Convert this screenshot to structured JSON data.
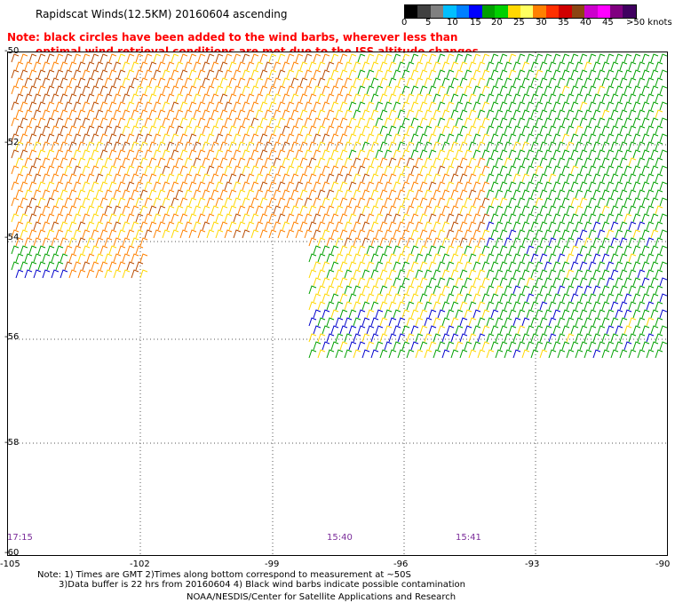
{
  "header": {
    "title": "Rapidscat Winds(12.5KM) 20160604 ascending",
    "note_line1": "Note: black circles have been added to the wind barbs, wherever less than",
    "note_line2": "optimal wind retrieval conditions are met due to the ISS altitude changes."
  },
  "legend": {
    "colors": [
      "#000000",
      "#404040",
      "#808080",
      "#00bfff",
      "#0080ff",
      "#0000ff",
      "#00a000",
      "#00d000",
      "#ffd800",
      "#ffff60",
      "#ff8000",
      "#ff3000",
      "#d00000",
      "#8b4513",
      "#cc00cc",
      "#ff00ff",
      "#800080",
      "#400060"
    ],
    "labels": [
      "0",
      "5",
      "10",
      "15",
      "20",
      "25",
      "30",
      "35",
      "40",
      "45",
      ">50 knots"
    ]
  },
  "axes": {
    "x_ticks": [
      "-105",
      "-102",
      "-99",
      "-96",
      "-93",
      "-90"
    ],
    "y_ticks": [
      "-50",
      "-52",
      "-54",
      "-56",
      "-58",
      "-60"
    ]
  },
  "times": [
    "17:15",
    "15:40",
    "15:41"
  ],
  "footer": {
    "line1": "Note: 1) Times are GMT 2)Times along bottom correspond to measurement at ~50S",
    "line2": "3)Data buffer is 22 hrs from 20160604 4) Black wind barbs indicate possible contamination",
    "credit": "NOAA/NESDIS/Center for Satellite Applications and Research"
  },
  "wind_colors": {
    "yellow": "#ffd800",
    "orange": "#ff8000",
    "brown": "#b84a00",
    "green": "#00a000",
    "blue": "#0000cc",
    "black": "#000000"
  }
}
